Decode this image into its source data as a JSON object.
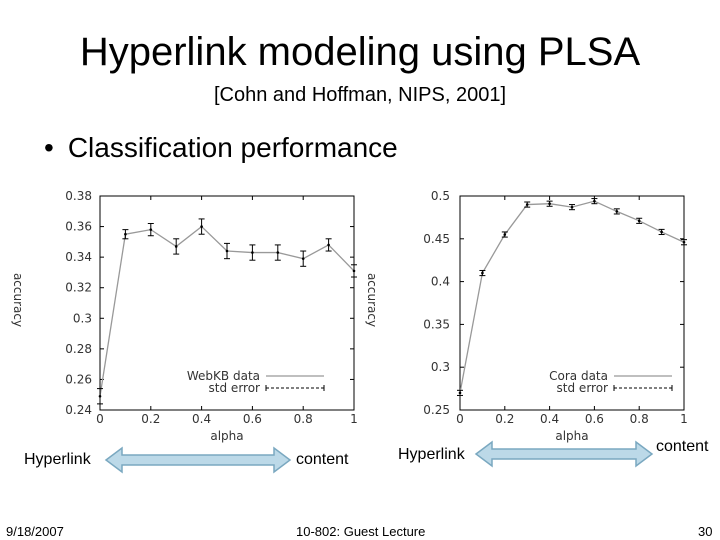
{
  "slide": {
    "title": "Hyperlink modeling using PLSA",
    "citation": "[Cohn and Hoffman, NIPS, 2001]",
    "bullet": "Classification performance"
  },
  "footer": {
    "date": "9/18/2007",
    "course": "10-802: Guest Lecture",
    "page": "30"
  },
  "arrows": [
    {
      "left_label": "Hyperlink",
      "right_label": "content",
      "color": "#bcd9e8"
    },
    {
      "left_label": "Hyperlink",
      "right_label": "content",
      "color": "#bcd9e8"
    }
  ],
  "chart_data": [
    {
      "type": "line",
      "xlabel": "alpha",
      "ylabel": "accuracy",
      "xlim": [
        0,
        1
      ],
      "ylim": [
        0.24,
        0.38
      ],
      "xticks": [
        "0",
        "0.2",
        "0.4",
        "0.6",
        "0.8",
        "1"
      ],
      "yticks": [
        "0.24",
        "0.26",
        "0.28",
        "0.3",
        "0.32",
        "0.34",
        "0.36",
        "0.38"
      ],
      "legend": [
        "WebKB data",
        "std error"
      ],
      "x": [
        0,
        0.1,
        0.2,
        0.3,
        0.4,
        0.5,
        0.6,
        0.7,
        0.8,
        0.9,
        1.0
      ],
      "values": [
        0.249,
        0.355,
        0.358,
        0.347,
        0.36,
        0.344,
        0.343,
        0.343,
        0.339,
        0.348,
        0.331
      ],
      "errors": [
        0.005,
        0.003,
        0.004,
        0.005,
        0.005,
        0.005,
        0.005,
        0.005,
        0.005,
        0.004,
        0.004
      ]
    },
    {
      "type": "line",
      "xlabel": "alpha",
      "ylabel": "accuracy",
      "xlim": [
        0,
        1
      ],
      "ylim": [
        0.25,
        0.5
      ],
      "xticks": [
        "0",
        "0.2",
        "0.4",
        "0.6",
        "0.8",
        "1"
      ],
      "yticks": [
        "0.25",
        "0.3",
        "0.35",
        "0.4",
        "0.45",
        "0.5"
      ],
      "legend": [
        "Cora data",
        "std error"
      ],
      "x": [
        0,
        0.1,
        0.2,
        0.3,
        0.4,
        0.5,
        0.6,
        0.7,
        0.8,
        0.9,
        1.0
      ],
      "values": [
        0.27,
        0.41,
        0.455,
        0.49,
        0.491,
        0.487,
        0.494,
        0.482,
        0.471,
        0.458,
        0.446
      ],
      "errors": [
        0.003,
        0.003,
        0.003,
        0.003,
        0.003,
        0.003,
        0.003,
        0.003,
        0.003,
        0.003,
        0.003
      ]
    }
  ]
}
